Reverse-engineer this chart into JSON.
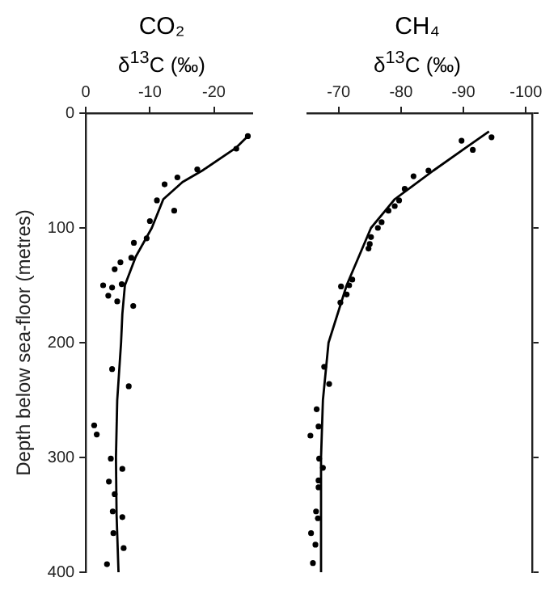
{
  "chart_data": [
    {
      "type": "scatter",
      "title": "CO₂",
      "xlabel": "δ$^{13}$C (‰)",
      "ylabel": "Depth below sea-floor (metres)",
      "xlim": [
        0,
        -26
      ],
      "xticks": [
        0,
        -10,
        -20
      ],
      "ylim": [
        400,
        0
      ],
      "yticks": [
        0,
        100,
        200,
        300,
        400
      ],
      "grid": false,
      "legend": false,
      "series": [
        {
          "type": "scatter",
          "marker": "circle",
          "color": "#000000",
          "x": [
            -25.3,
            -23.5,
            -17.4,
            -14.3,
            -12.3,
            -11.1,
            -13.8,
            -10.0,
            -9.5,
            -7.5,
            -7.1,
            -5.4,
            -4.5,
            -5.6,
            -2.7,
            -4.1,
            -3.5,
            -4.9,
            -7.4,
            -4.1,
            -6.7,
            -1.3,
            -1.7,
            -3.9,
            -5.7,
            -3.6,
            -4.5,
            -4.2,
            -5.7,
            -4.3,
            -5.9,
            -3.3
          ],
          "values": [
            20,
            31,
            49,
            56,
            62,
            76,
            85,
            94,
            109,
            113,
            126,
            130,
            136,
            149,
            150,
            152,
            159,
            164,
            168,
            223,
            238,
            272,
            280,
            301,
            310,
            321,
            332,
            347,
            352,
            366,
            379,
            393
          ]
        },
        {
          "type": "line",
          "marker": "none",
          "color": "#000000",
          "line_style": "solid",
          "x": [
            -25.3,
            -23.5,
            -18.2,
            -15.1,
            -12.1,
            -10.3,
            -7.8,
            -6.1,
            -5.7,
            -5.5,
            -4.9,
            -4.7,
            -4.8,
            -5.1
          ],
          "values": [
            20,
            30,
            50,
            60,
            75,
            100,
            125,
            150,
            175,
            200,
            250,
            300,
            350,
            400
          ]
        }
      ]
    },
    {
      "type": "scatter",
      "title": "CH₄",
      "xlabel": "δ$^{13}$C (‰)",
      "xlim": [
        -65,
        -101
      ],
      "xticks": [
        -70,
        -80,
        -90,
        -100
      ],
      "ylim": [
        400,
        0
      ],
      "yticks": [
        0,
        100,
        200,
        300,
        400
      ],
      "tick_labels": "x",
      "grid": false,
      "legend": false,
      "series": [
        {
          "type": "scatter",
          "marker": "circle",
          "color": "#000000",
          "x": [
            -94.5,
            -89.7,
            -91.5,
            -84.4,
            -82.0,
            -80.6,
            -79.7,
            -79.0,
            -78.0,
            -76.9,
            -76.3,
            -75.2,
            -75.0,
            -74.8,
            -72.2,
            -70.4,
            -71.7,
            -71.3,
            -70.3,
            -67.7,
            -68.5,
            -66.5,
            -66.8,
            -65.5,
            -66.9,
            -67.5,
            -66.8,
            -66.8,
            -66.4,
            -66.7,
            -65.6,
            -66.3,
            -65.9
          ],
          "values": [
            21,
            24,
            32,
            50,
            55,
            66,
            76,
            81,
            85,
            95,
            100,
            108,
            114,
            118,
            145,
            151,
            150,
            158,
            165,
            221,
            236,
            258,
            273,
            281,
            301,
            309,
            320,
            326,
            347,
            353,
            366,
            376,
            392
          ]
        },
        {
          "type": "line",
          "marker": "none",
          "color": "#000000",
          "line_style": "solid",
          "x": [
            -94.1,
            -90.4,
            -85.2,
            -79.0,
            -75.2,
            -71.3,
            -68.4,
            -67.5,
            -67.2,
            -67.2
          ],
          "values": [
            16,
            30,
            50,
            75,
            100,
            150,
            200,
            250,
            300,
            400
          ]
        }
      ]
    }
  ]
}
